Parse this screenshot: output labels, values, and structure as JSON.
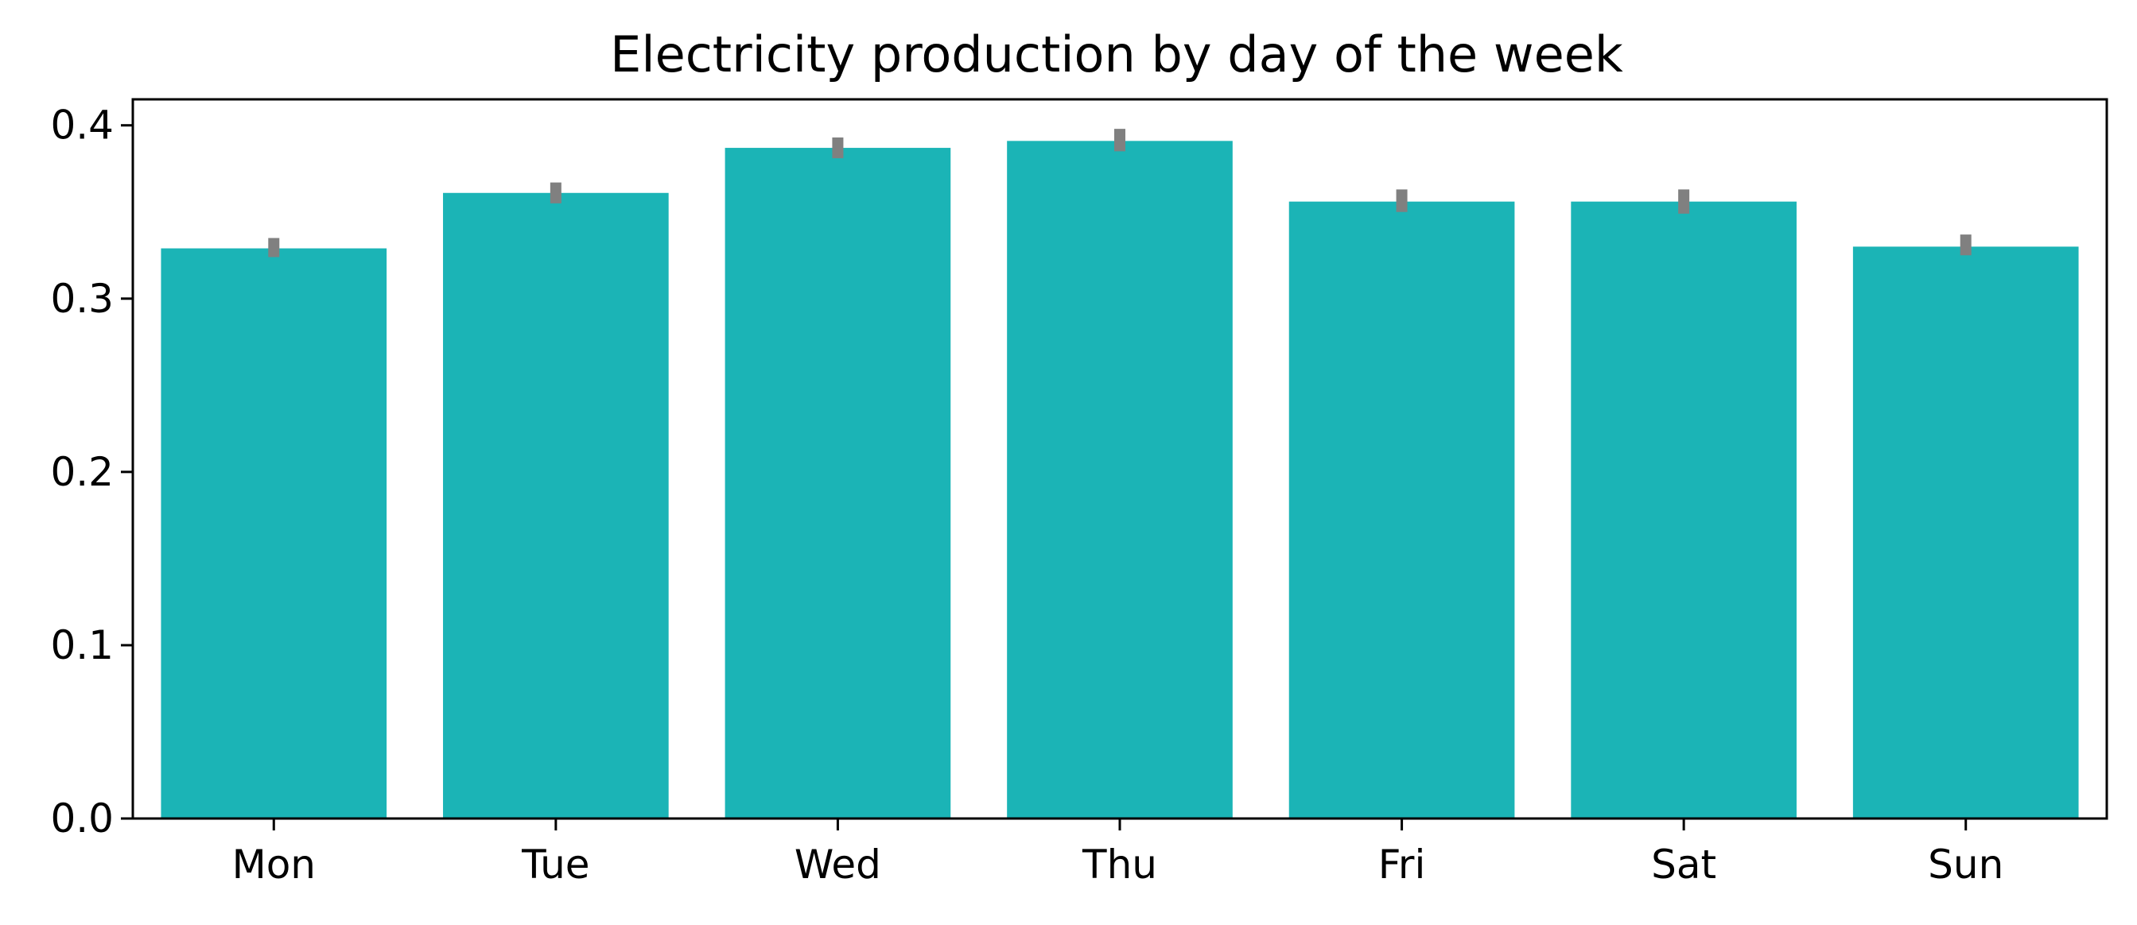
{
  "chart_data": {
    "type": "bar",
    "title": "Electricity production by day of the week",
    "xlabel": "",
    "ylabel": "",
    "categories": [
      "Mon",
      "Tue",
      "Wed",
      "Thu",
      "Fri",
      "Sat",
      "Sun"
    ],
    "values": [
      0.329,
      0.361,
      0.387,
      0.391,
      0.356,
      0.356,
      0.33
    ],
    "error_low": [
      0.324,
      0.355,
      0.381,
      0.385,
      0.35,
      0.349,
      0.325
    ],
    "error_high": [
      0.335,
      0.367,
      0.393,
      0.398,
      0.363,
      0.363,
      0.337
    ],
    "ylim": [
      0,
      0.415
    ],
    "yticks": [
      0.0,
      0.1,
      0.2,
      0.3,
      0.4
    ],
    "ytick_labels": [
      "0.0",
      "0.1",
      "0.2",
      "0.3",
      "0.4"
    ],
    "grid": false,
    "legend": "none",
    "colors": {
      "bar": "#1bb4b6",
      "error": "#808080",
      "axis": "#000000"
    }
  }
}
